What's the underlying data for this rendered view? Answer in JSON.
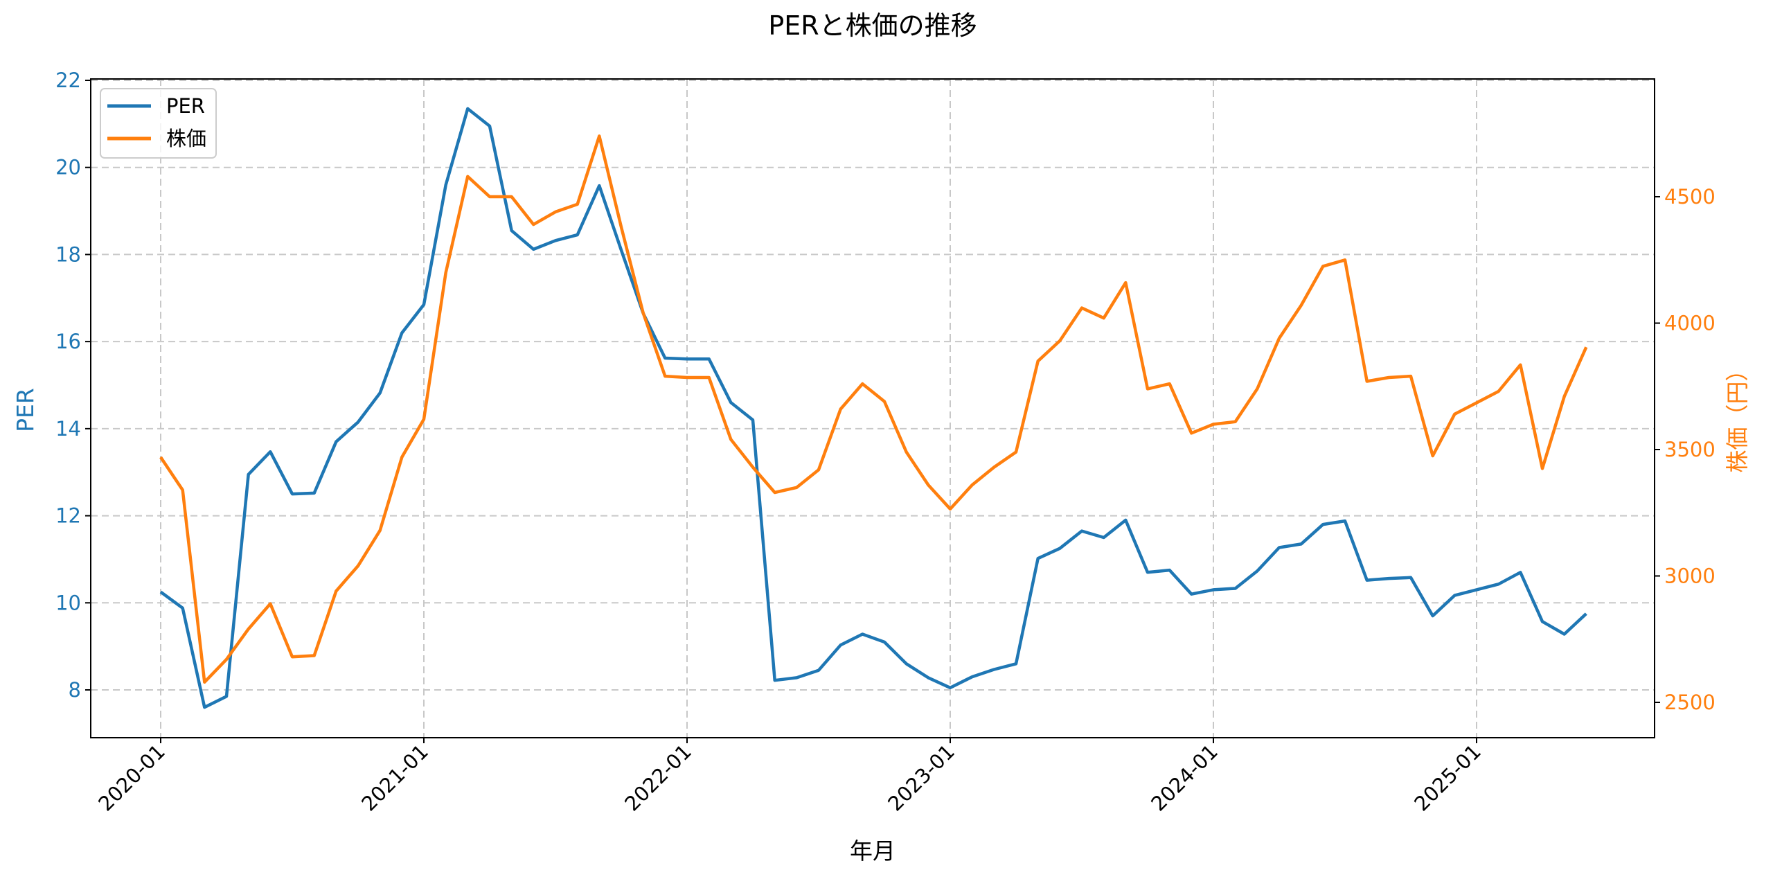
{
  "chart_data": {
    "type": "line",
    "title": "PERと株価の推移",
    "xlabel": "年月",
    "ylabel": "PER",
    "ylabel_right": "株価（円）",
    "ylim": [
      7,
      22
    ],
    "ylim_right": [
      2450,
      4960
    ],
    "yticks": [
      8,
      10,
      12,
      14,
      16,
      18,
      20,
      22
    ],
    "yticks_right": [
      2500,
      3000,
      3500,
      4000,
      4500
    ],
    "xticks": [
      "2020-01",
      "2021-01",
      "2022-01",
      "2023-01",
      "2024-01",
      "2025-01"
    ],
    "grid": true,
    "legend_position": "upper left",
    "x": [
      "2020-01",
      "2020-02",
      "2020-03",
      "2020-04",
      "2020-05",
      "2020-06",
      "2020-07",
      "2020-08",
      "2020-09",
      "2020-10",
      "2020-11",
      "2020-12",
      "2021-01",
      "2021-02",
      "2021-03",
      "2021-04",
      "2021-05",
      "2021-06",
      "2021-07",
      "2021-08",
      "2021-09",
      "2021-10",
      "2021-11",
      "2021-12",
      "2022-01",
      "2022-02",
      "2022-03",
      "2022-04",
      "2022-05",
      "2022-06",
      "2022-07",
      "2022-08",
      "2022-09",
      "2022-10",
      "2022-11",
      "2022-12",
      "2023-01",
      "2023-02",
      "2023-03",
      "2023-04",
      "2023-05",
      "2023-06",
      "2023-07",
      "2023-08",
      "2023-09",
      "2023-10",
      "2023-11",
      "2023-12",
      "2024-01",
      "2024-02",
      "2024-03",
      "2024-04",
      "2024-05",
      "2024-06",
      "2024-07",
      "2024-08",
      "2024-09",
      "2024-10",
      "2024-11",
      "2024-12",
      "2025-01",
      "2025-02",
      "2025-03",
      "2025-04",
      "2025-05",
      "2025-06"
    ],
    "series": [
      {
        "name": "PER",
        "axis": "left",
        "color": "#1f77b4",
        "values": [
          10.25,
          9.88,
          7.6,
          7.85,
          12.95,
          13.47,
          12.5,
          12.52,
          13.7,
          14.15,
          14.82,
          16.2,
          16.85,
          19.6,
          21.35,
          20.95,
          18.55,
          18.12,
          18.32,
          18.45,
          19.58,
          18.1,
          16.65,
          15.62,
          15.6,
          15.6,
          14.6,
          14.2,
          8.22,
          8.28,
          8.45,
          9.03,
          9.28,
          9.1,
          8.6,
          8.28,
          8.05,
          8.3,
          8.47,
          8.6,
          11.02,
          11.25,
          11.65,
          11.5,
          11.9,
          10.7,
          10.75,
          10.2,
          10.3,
          10.33,
          10.73,
          11.27,
          11.35,
          11.8,
          11.88,
          10.52,
          10.56,
          10.58,
          9.7,
          10.17,
          10.3,
          10.43,
          10.7,
          9.57,
          9.28,
          9.75
        ]
      },
      {
        "name": "株価",
        "axis": "right",
        "color": "#ff7f0e",
        "values": [
          3470,
          3340,
          2580,
          2670,
          2790,
          2890,
          2680,
          2685,
          2940,
          3040,
          3180,
          3470,
          3620,
          4200,
          4580,
          4500,
          4500,
          4390,
          4440,
          4470,
          4740,
          4380,
          4040,
          3790,
          3785,
          3785,
          3540,
          3430,
          3330,
          3350,
          3420,
          3660,
          3760,
          3690,
          3490,
          3360,
          3265,
          3360,
          3430,
          3490,
          3850,
          3930,
          4060,
          4020,
          4160,
          3740,
          3760,
          3565,
          3600,
          3610,
          3740,
          3940,
          4070,
          4225,
          4250,
          3770,
          3785,
          3790,
          3475,
          3640,
          3685,
          3730,
          3835,
          3425,
          3710,
          3905
        ]
      }
    ]
  },
  "legend": {
    "items": [
      {
        "label": "PER",
        "color": "#1f77b4"
      },
      {
        "label": "株価",
        "color": "#ff7f0e"
      }
    ]
  }
}
